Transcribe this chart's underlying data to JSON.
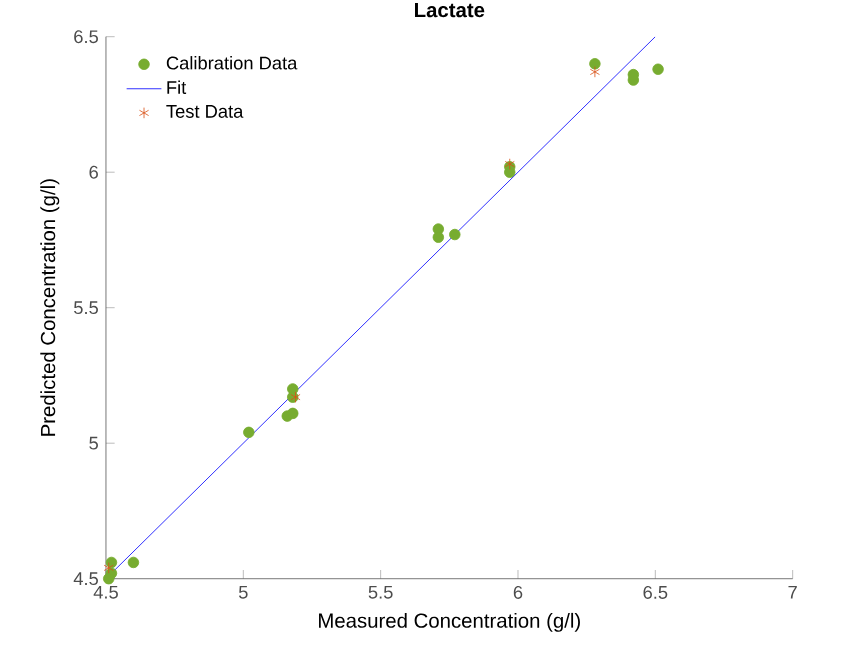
{
  "chart_data": {
    "type": "scatter",
    "title": "Lactate",
    "xlabel": "Measured Concentration (g/l)",
    "ylabel": "Predicted Concentration (g/l)",
    "xlim": [
      4.5,
      7
    ],
    "ylim": [
      4.5,
      6.5
    ],
    "xticks": [
      4.5,
      5,
      5.5,
      6,
      6.5,
      7
    ],
    "yticks": [
      4.5,
      5,
      5.5,
      6,
      6.5
    ],
    "legend": "top left",
    "grid": false,
    "series": [
      {
        "name": "Calibration Data",
        "marker": "circle",
        "color": "#77ac30",
        "x": [
          4.52,
          4.52,
          4.51,
          4.6,
          5.02,
          5.16,
          5.18,
          5.18,
          5.18,
          5.71,
          5.71,
          5.77,
          5.97,
          5.97,
          6.28,
          6.42,
          6.42,
          6.51
        ],
        "values": [
          4.56,
          4.52,
          4.5,
          4.56,
          5.04,
          5.1,
          5.11,
          5.2,
          5.17,
          5.79,
          5.76,
          5.77,
          6.0,
          6.02,
          6.4,
          6.34,
          6.36,
          6.38
        ]
      },
      {
        "name": "Fit",
        "type": "line",
        "marker": "none",
        "line_style": "solid",
        "color": "#0000ff",
        "x": [
          4.5,
          6.5
        ],
        "values": [
          4.5,
          6.5
        ]
      },
      {
        "name": "Test Data",
        "marker": "cross",
        "color": "#d95319",
        "x": [
          4.51,
          5.19,
          5.97,
          6.28
        ],
        "values": [
          4.54,
          5.17,
          6.03,
          6.37
        ]
      }
    ]
  }
}
